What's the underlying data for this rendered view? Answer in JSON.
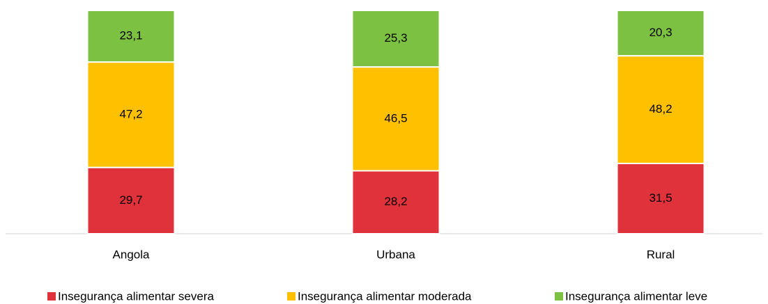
{
  "chart_data": {
    "type": "stacked_bar",
    "categories": [
      "Angola",
      "Urbana",
      "Rural"
    ],
    "series": [
      {
        "name": "Insegurança alimentar severa",
        "color": "#e0323a",
        "values": [
          29.7,
          28.2,
          31.5
        ],
        "value_labels": [
          "29,7",
          "28,2",
          "31,5"
        ]
      },
      {
        "name": "Insegurança alimentar moderada",
        "color": "#ffc000",
        "values": [
          47.2,
          46.5,
          48.2
        ],
        "value_labels": [
          "47,2",
          "46,5",
          "48,2"
        ]
      },
      {
        "name": "Insegurança alimentar leve",
        "color": "#7cc142",
        "values": [
          23.1,
          25.3,
          20.3
        ],
        "value_labels": [
          "23,1",
          "25,3",
          "20,3"
        ]
      }
    ],
    "ylim": [
      0,
      100
    ],
    "legend": "bottom"
  }
}
